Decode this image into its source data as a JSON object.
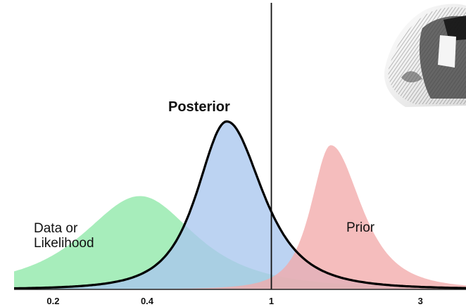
{
  "chart_data": {
    "type": "area",
    "x_scale": "log",
    "x_ticks": [
      {
        "value": 0.2,
        "label": "0.2"
      },
      {
        "value": 0.4,
        "label": "0.4"
      },
      {
        "value": 1,
        "label": "1"
      },
      {
        "value": 3,
        "label": "3"
      }
    ],
    "xlim": [
      0.15,
      4.2
    ],
    "ylim": [
      0,
      1.05
    ],
    "reference_line_x": 1,
    "series": [
      {
        "name": "Data or Likelihood",
        "label_lines": [
          "Data or",
          "Likelihood"
        ],
        "color": "#8ee8a8",
        "peak_x": 0.38,
        "peak_y": 0.55,
        "log_sd_left": 0.38,
        "log_sd_right": 0.36,
        "shape": 1.5
      },
      {
        "name": "Posterior",
        "label_lines": [
          "Posterior"
        ],
        "color": "#a9c7ee",
        "peak_x": 0.72,
        "peak_y": 0.99,
        "log_sd_left": 0.195,
        "log_sd_right": 0.235,
        "shape": 1.7,
        "outline": true
      },
      {
        "name": "Prior",
        "label_lines": [
          "Prior"
        ],
        "color": "#f2aaab",
        "peak_x": 1.55,
        "peak_y": 0.85,
        "log_sd_left": 0.13,
        "log_sd_right": 0.2,
        "shape": 1.7
      }
    ]
  },
  "portrait": {
    "icon": "engraved-portrait-icon"
  }
}
